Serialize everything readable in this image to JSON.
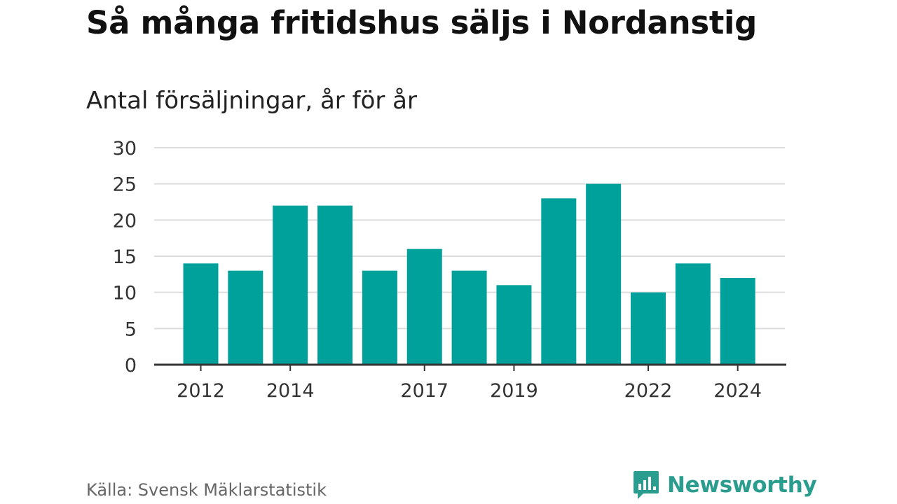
{
  "title": "Så många fritidshus säljs i Nordanstig",
  "subtitle": "Antal försäljningar, år för år",
  "source": "Källa: Svensk Mäklarstatistik",
  "brand": {
    "name": "Newsworthy",
    "icon": "newsworthy-logo-icon",
    "color": "#2a9d8f"
  },
  "chart_data": {
    "type": "bar",
    "title": "Så många fritidshus säljs i Nordanstig",
    "subtitle": "Antal försäljningar, år för år",
    "xlabel": "",
    "ylabel": "",
    "categories": [
      "2012",
      "2013",
      "2014",
      "2015",
      "2016",
      "2017",
      "2018",
      "2019",
      "2020",
      "2021",
      "2022",
      "2023",
      "2024"
    ],
    "x_tick_labels": [
      "2012",
      "2014",
      "2017",
      "2019",
      "2022",
      "2024"
    ],
    "values": [
      14,
      13,
      22,
      22,
      13,
      16,
      13,
      11,
      23,
      25,
      10,
      14,
      12
    ],
    "ylim": [
      0,
      30
    ],
    "y_ticks": [
      0,
      5,
      10,
      15,
      20,
      25,
      30
    ],
    "grid": true,
    "legend": "none",
    "bar_color": "#00a19a"
  }
}
